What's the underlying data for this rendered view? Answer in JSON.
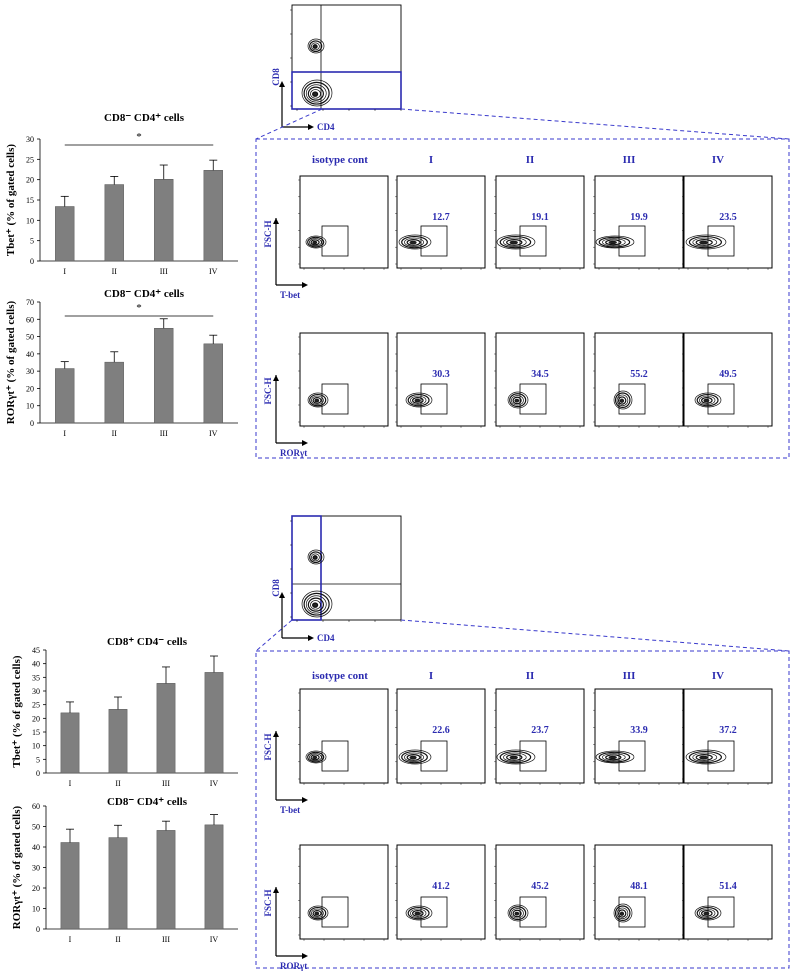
{
  "colors": {
    "bar": "#7f7f7f",
    "accent": "#2b2bb0",
    "dashed": "#3a3acc",
    "ink": "#000000"
  },
  "chart_data": [
    {
      "type": "bar",
      "title": "CD8⁻ CD4⁺ cells",
      "ylabel": "Tbet⁺ (% of gated cells)",
      "categories": [
        "I",
        "II",
        "III",
        "IV"
      ],
      "values": [
        13.4,
        18.8,
        20.1,
        22.3
      ],
      "errors": [
        2.5,
        2.0,
        3.5,
        2.5
      ],
      "ylim": [
        0,
        30
      ],
      "ticks": [
        0,
        5,
        10,
        15,
        20,
        25,
        30
      ],
      "significance": "*"
    },
    {
      "type": "bar",
      "title": "CD8⁻ CD4⁺ cells",
      "ylabel": "RORγt⁺ (% of gated cells)",
      "categories": [
        "I",
        "II",
        "III",
        "IV"
      ],
      "values": [
        31.5,
        35.2,
        54.8,
        45.8
      ],
      "errors": [
        4.0,
        6.0,
        5.5,
        5.0
      ],
      "ylim": [
        0,
        70
      ],
      "ticks": [
        0,
        10,
        20,
        30,
        40,
        50,
        60,
        70
      ],
      "significance": "*"
    },
    {
      "type": "bar",
      "title": "CD8⁺ CD4⁻ cells",
      "ylabel": "Tbet⁺ (% of gated cells)",
      "categories": [
        "I",
        "II",
        "III",
        "IV"
      ],
      "values": [
        22.0,
        23.3,
        32.8,
        36.8
      ],
      "errors": [
        4.0,
        4.5,
        6.0,
        6.0
      ],
      "ylim": [
        0,
        45
      ],
      "ticks": [
        0,
        5,
        10,
        15,
        20,
        25,
        30,
        35,
        40,
        45
      ]
    },
    {
      "type": "bar",
      "title": "CD8⁻ CD4⁺ cells",
      "ylabel": "RORγt⁺ (% of gated cells)",
      "categories": [
        "I",
        "II",
        "III",
        "IV"
      ],
      "values": [
        42.2,
        44.6,
        48.1,
        50.8
      ],
      "errors": [
        6.5,
        6.0,
        4.5,
        5.0
      ],
      "ylim": [
        0,
        60
      ],
      "ticks": [
        0,
        10,
        20,
        30,
        40,
        50,
        60
      ]
    }
  ],
  "gating": [
    {
      "xlabel": "CD4",
      "ylabel": "CD8"
    },
    {
      "xlabel": "CD4",
      "ylabel": "CD8"
    }
  ],
  "flow_sets": [
    {
      "headers": [
        "isotype cont",
        "I",
        "II",
        "III",
        "IV"
      ],
      "rows": [
        {
          "marker": "T-bet",
          "ylabel": "FSC-H",
          "values": [
            "",
            "12.7",
            "19.1",
            "19.9",
            "23.5"
          ]
        },
        {
          "marker": "RORγt",
          "ylabel": "FSC-H",
          "values": [
            "",
            "30.3",
            "34.5",
            "55.2",
            "49.5"
          ]
        }
      ]
    },
    {
      "headers": [
        "isotype cont",
        "I",
        "II",
        "III",
        "IV"
      ],
      "rows": [
        {
          "marker": "T-bet",
          "ylabel": "FSC-H",
          "values": [
            "",
            "22.6",
            "23.7",
            "33.9",
            "37.2"
          ]
        },
        {
          "marker": "RORγt",
          "ylabel": "FSC-H",
          "values": [
            "",
            "41.2",
            "45.2",
            "48.1",
            "51.4"
          ]
        }
      ]
    }
  ]
}
